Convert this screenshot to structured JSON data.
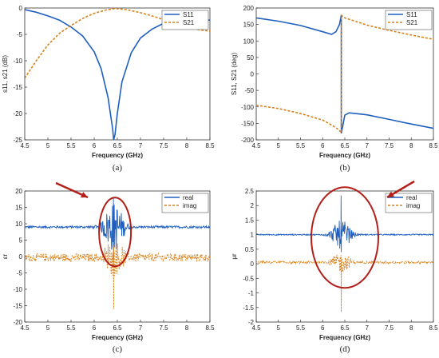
{
  "panels": [
    {
      "caption": "(a)",
      "xlabel": "Frequency (GHz)",
      "ylabel": "s11, s21 (dB)",
      "xlim": [
        4.5,
        8.5
      ],
      "ylim": [
        -25,
        0
      ],
      "xticks": [
        "4.5",
        "5",
        "5.5",
        "6",
        "6.5",
        "7",
        "7.5",
        "8",
        "8.5"
      ],
      "yticks": [
        "0",
        "-5",
        "-10",
        "-15",
        "-20",
        "-25"
      ],
      "legend": [
        "S11",
        "S21"
      ],
      "legend_position": "top-right",
      "series": [
        {
          "name": "S11",
          "style": "solid",
          "color": "#1f5fbf",
          "x": [
            4.5,
            4.75,
            5,
            5.25,
            5.5,
            5.75,
            6,
            6.15,
            6.3,
            6.4,
            6.42,
            6.45,
            6.5,
            6.6,
            6.8,
            7,
            7.25,
            7.5,
            7.75,
            8,
            8.25,
            8.5
          ],
          "y": [
            -0.3,
            -0.8,
            -1.5,
            -2.3,
            -3.6,
            -5.3,
            -8.3,
            -11.5,
            -17,
            -23,
            -25,
            -24,
            -20,
            -14,
            -8.5,
            -5.7,
            -4,
            -2.9,
            -2.3,
            -2.0,
            -2.1,
            -2.3
          ]
        },
        {
          "name": "S21",
          "style": "dashed",
          "color": "#d9801a",
          "x": [
            4.5,
            4.75,
            5,
            5.25,
            5.5,
            5.75,
            6,
            6.25,
            6.45,
            6.7,
            7,
            7.25,
            7.5,
            7.75,
            8,
            8.25,
            8.5
          ],
          "y": [
            -13.3,
            -10,
            -7,
            -4.8,
            -3.3,
            -2.0,
            -1.0,
            -0.4,
            -0.1,
            -0.3,
            -0.9,
            -1.5,
            -2.2,
            -3.0,
            -3.6,
            -4.1,
            -4.4
          ]
        }
      ]
    },
    {
      "caption": "(b)",
      "xlabel": "Frequency (GHz)",
      "ylabel": "S11, S21 (deg)",
      "xlim": [
        4.5,
        8.5
      ],
      "ylim": [
        -200,
        200
      ],
      "xticks": [
        "4.5",
        "5",
        "5.5",
        "6",
        "6.5",
        "7",
        "7.5",
        "8",
        "8.5"
      ],
      "yticks": [
        "200",
        "150",
        "100",
        "50",
        "0",
        "-50",
        "-100",
        "-150",
        "-200"
      ],
      "legend": [
        "S11",
        "S21"
      ],
      "legend_position": "top-right",
      "series": [
        {
          "name": "S11",
          "style": "solid",
          "color": "#1f5fbf",
          "x": [
            4.5,
            5,
            5.5,
            6,
            6.2,
            6.3,
            6.38,
            6.42,
            6.42,
            6.5,
            6.6,
            7,
            7.5,
            8,
            8.5
          ],
          "y": [
            170,
            160,
            147,
            128,
            120,
            128,
            150,
            178,
            -180,
            -125,
            -118,
            -124,
            -138,
            -152,
            -165
          ]
        },
        {
          "name": "S21",
          "style": "dashed",
          "color": "#d9801a",
          "x": [
            4.5,
            5,
            5.5,
            6,
            6.2,
            6.35,
            6.42,
            6.42,
            6.5,
            7,
            7.5,
            8,
            8.5
          ],
          "y": [
            -95,
            -105,
            -120,
            -140,
            -155,
            -168,
            -178,
            178,
            170,
            148,
            132,
            118,
            105
          ]
        }
      ]
    },
    {
      "caption": "(c)",
      "xlabel": "Frequency (GHz)",
      "ylabel": "εr",
      "xlim": [
        4.5,
        8.5
      ],
      "ylim": [
        -20,
        20
      ],
      "xticks": [
        "4.5",
        "5",
        "5.5",
        "6",
        "6.5",
        "7",
        "7.5",
        "8",
        "8.5"
      ],
      "yticks": [
        "20",
        "15",
        "10",
        "5",
        "0",
        "-5",
        "-10",
        "-15",
        "-20"
      ],
      "legend": [
        "real",
        "imag"
      ],
      "legend_position": "top-right",
      "series": [
        {
          "name": "real",
          "style": "solid",
          "color": "#1f5fbf",
          "base": 9,
          "noise": 0.35,
          "burst": 7.5,
          "peak": 18,
          "trough": -1
        },
        {
          "name": "imag",
          "style": "dashed",
          "color": "#d9801a",
          "base": -0.3,
          "noise": 1.2,
          "burst": 5,
          "peak": 3,
          "trough": -16
        }
      ]
    },
    {
      "caption": "(d)",
      "xlabel": "Frequency (GHz)",
      "ylabel": "μr",
      "xlim": [
        4.5,
        8.5
      ],
      "ylim": [
        -2,
        2.5
      ],
      "xticks": [
        "4.5",
        "5",
        "5.5",
        "6",
        "6.5",
        "7",
        "7.5",
        "8",
        "8.5"
      ],
      "yticks": [
        "2.5",
        "2",
        "1.5",
        "1",
        "0.5",
        "0",
        "-0.5",
        "-1",
        "-1.5",
        "-2"
      ],
      "legend": [
        "real",
        "imag"
      ],
      "legend_position": "top-right",
      "series": [
        {
          "name": "real",
          "style": "solid",
          "color": "#1f5fbf",
          "base": 1.0,
          "noise": 0.02,
          "burst": 0.5,
          "peak": 2.35,
          "trough": 0.4
        },
        {
          "name": "imag",
          "style": "dashed",
          "color": "#d9801a",
          "base": 0.05,
          "noise": 0.04,
          "burst": 0.35,
          "peak": 0.3,
          "trough": -1.65
        }
      ]
    }
  ],
  "colors": {
    "s11": "#1f5fbf",
    "s21": "#d9801a",
    "annotation": "#b3201a"
  }
}
